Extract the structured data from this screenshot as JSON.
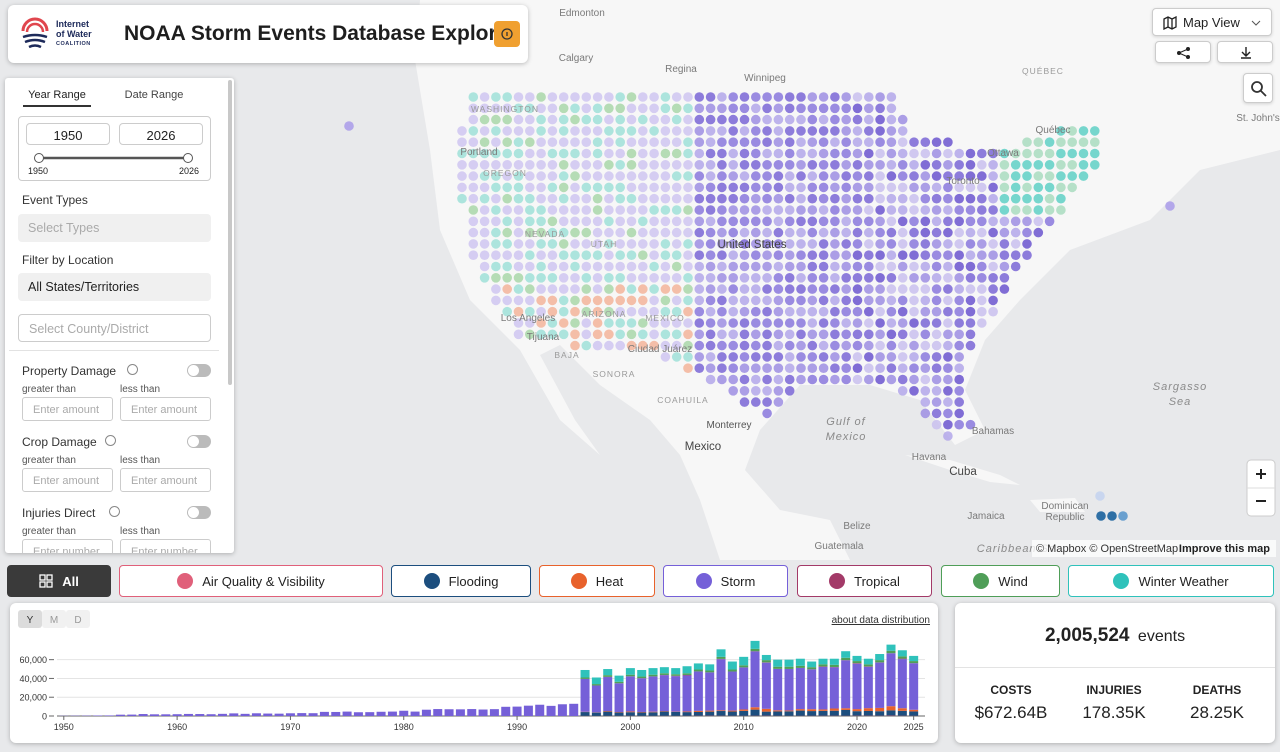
{
  "header": {
    "logo": [
      "Internet",
      "of Water",
      "COALITION"
    ],
    "title": "NOAA Storm Events Database Explorer"
  },
  "map_controls": {
    "view": "Map View"
  },
  "map": {
    "labels": [
      "Edmonton",
      "Calgary",
      "Regina",
      "Winnipeg",
      "QUÉBEC",
      "Québec",
      "Ottawa",
      "Toronto",
      "WASHINGTON",
      "Portland",
      "OREGON",
      "NEVADA",
      "UTAH",
      "United States",
      "Los Angeles",
      "Tijuana",
      "ARIZONA",
      "MEXICO",
      "Ciudad Juárez",
      "SONORA",
      "BAJA",
      "COAHUILA",
      "Monterrey",
      "Gulf of",
      "Mexico",
      "Mexico",
      "Havana",
      "Cuba",
      "Bahamas",
      "Sargasso",
      "Sea",
      "Jamaica",
      "Dominican",
      "Republic",
      "Belize",
      "Guatemala",
      "Caribbean Sea",
      "St. John's"
    ],
    "attribution": "© Mapbox © OpenStreetMap",
    "improve": "Improve this map"
  },
  "sidebar": {
    "tabs": [
      "Year Range",
      "Date Range"
    ],
    "year_from": 1950,
    "year_to": 2026,
    "slider_min": 1950,
    "slider_max": 2026,
    "event_types_label": "Event Types",
    "event_types_placeholder": "Select Types",
    "location_label": "Filter by Location",
    "location_value": "All States/Territories",
    "county_placeholder": "Select County/District",
    "filters": [
      {
        "label": "Property Damage",
        "greater": "greater than",
        "less": "less than",
        "placeholder": "Enter amount"
      },
      {
        "label": "Crop Damage",
        "greater": "greater than",
        "less": "less than",
        "placeholder": "Enter amount"
      },
      {
        "label": "Injuries Direct",
        "greater": "greater than",
        "less": "less than",
        "placeholder": "Enter number"
      }
    ]
  },
  "tabs": {
    "all": "All"
  },
  "chart_controls": {
    "periods": [
      "Y",
      "M",
      "D"
    ],
    "link": "about data distribution"
  },
  "chart_data": {
    "type": "bar",
    "stacked": true,
    "x": [
      1950,
      1951,
      1952,
      1953,
      1954,
      1955,
      1956,
      1957,
      1958,
      1959,
      1960,
      1961,
      1962,
      1963,
      1964,
      1965,
      1966,
      1967,
      1968,
      1969,
      1970,
      1971,
      1972,
      1973,
      1974,
      1975,
      1976,
      1977,
      1978,
      1979,
      1980,
      1981,
      1982,
      1983,
      1984,
      1985,
      1986,
      1987,
      1988,
      1989,
      1990,
      1991,
      1992,
      1993,
      1994,
      1995,
      1996,
      1997,
      1998,
      1999,
      2000,
      2001,
      2002,
      2003,
      2004,
      2005,
      2006,
      2007,
      2008,
      2009,
      2010,
      2011,
      2012,
      2013,
      2014,
      2015,
      2016,
      2017,
      2018,
      2019,
      2020,
      2021,
      2022,
      2023,
      2024,
      2025
    ],
    "xlim": [
      1949.4,
      2026
    ],
    "xticks": [
      1950,
      1960,
      1970,
      1980,
      1990,
      2000,
      2010,
      2020,
      2025
    ],
    "ylim": [
      0,
      82000
    ],
    "yticks": [
      0,
      {
        "value": 20000,
        "label": "20,000"
      },
      {
        "value": 40000,
        "label": "40,000"
      },
      {
        "value": 60000,
        "label": "60,000"
      }
    ],
    "grid": true,
    "series": [
      {
        "name": "Air Quality & Visibility",
        "color": "#e0607a",
        "values": [
          0,
          0,
          0,
          0,
          0,
          0,
          0,
          0,
          0,
          0,
          0,
          0,
          0,
          0,
          0,
          0,
          0,
          0,
          0,
          0,
          0,
          0,
          0,
          0,
          0,
          0,
          0,
          0,
          0,
          0,
          0,
          0,
          0,
          0,
          0,
          0,
          0,
          0,
          0,
          0,
          0,
          0,
          0,
          0,
          0,
          0,
          200,
          150,
          200,
          200,
          250,
          200,
          200,
          250,
          200,
          250,
          300,
          350,
          300,
          250,
          250,
          300,
          350,
          250,
          200,
          250,
          250,
          300,
          300,
          250,
          350,
          350,
          300,
          450,
          300,
          250
        ]
      },
      {
        "name": "Flooding",
        "color": "#1c4e7e",
        "values": [
          0,
          0,
          0,
          0,
          0,
          0,
          0,
          0,
          0,
          0,
          0,
          0,
          0,
          0,
          0,
          0,
          0,
          0,
          0,
          0,
          0,
          0,
          0,
          0,
          0,
          0,
          0,
          0,
          0,
          0,
          0,
          0,
          0,
          0,
          0,
          0,
          0,
          0,
          0,
          0,
          0,
          0,
          0,
          0,
          0,
          0,
          4000,
          3500,
          4500,
          3500,
          3800,
          3600,
          3800,
          4500,
          4200,
          3900,
          4000,
          4300,
          5000,
          4500,
          5200,
          6500,
          4300,
          4600,
          4800,
          5500,
          5000,
          5200,
          5300,
          6200,
          4800,
          5000,
          4800,
          5500,
          5200,
          4600
        ]
      },
      {
        "name": "Heat",
        "color": "#e8622c",
        "values": [
          0,
          0,
          0,
          0,
          0,
          0,
          0,
          0,
          0,
          0,
          0,
          0,
          0,
          0,
          0,
          0,
          0,
          0,
          0,
          0,
          0,
          0,
          0,
          0,
          0,
          0,
          0,
          0,
          0,
          0,
          0,
          0,
          0,
          0,
          0,
          0,
          0,
          0,
          0,
          0,
          0,
          0,
          0,
          0,
          0,
          0,
          300,
          300,
          600,
          500,
          800,
          500,
          600,
          500,
          300,
          700,
          1200,
          1100,
          800,
          1000,
          1500,
          2500,
          3000,
          1200,
          900,
          1600,
          2000,
          1500,
          2400,
          1800,
          2200,
          3000,
          3500,
          4500,
          2800,
          1800
        ]
      },
      {
        "name": "Storm",
        "color": "#7560d8",
        "values": [
          200,
          300,
          350,
          500,
          600,
          1400,
          1500,
          2100,
          1800,
          1800,
          1900,
          2200,
          2100,
          1900,
          2300,
          2800,
          2300,
          2900,
          2600,
          2500,
          2900,
          3100,
          3000,
          4400,
          4300,
          4700,
          4000,
          4100,
          4500,
          4700,
          5600,
          4700,
          6700,
          7400,
          7200,
          7100,
          7400,
          6900,
          7300,
          9800,
          10000,
          11000,
          12000,
          10800,
          12500,
          13000,
          34900,
          28500,
          36200,
          30600,
          37350,
          35850,
          37450,
          38250,
          37700,
          38350,
          41900,
          40650,
          54400,
          41600,
          44700,
          59400,
          49150,
          44100,
          44150,
          43750,
          42350,
          45300,
          43900,
          51050,
          48350,
          44050,
          48300,
          56350,
          52300,
          49550
        ]
      },
      {
        "name": "Tropical",
        "color": "#a33a68",
        "values": [
          0,
          0,
          0,
          0,
          0,
          0,
          0,
          0,
          0,
          0,
          0,
          0,
          0,
          0,
          0,
          0,
          0,
          0,
          0,
          0,
          0,
          0,
          0,
          0,
          0,
          0,
          0,
          0,
          0,
          0,
          0,
          0,
          0,
          0,
          0,
          0,
          0,
          0,
          0,
          0,
          0,
          0,
          0,
          0,
          0,
          0,
          100,
          50,
          200,
          100,
          100,
          150,
          150,
          200,
          400,
          500,
          100,
          100,
          300,
          50,
          150,
          300,
          300,
          50,
          50,
          100,
          200,
          500,
          300,
          200,
          600,
          400,
          200,
          100,
          500,
          100
        ]
      },
      {
        "name": "Wind",
        "color": "#4f9e58",
        "values": [
          0,
          0,
          0,
          0,
          0,
          0,
          0,
          0,
          0,
          0,
          0,
          0,
          0,
          0,
          0,
          0,
          0,
          0,
          0,
          0,
          0,
          0,
          0,
          0,
          0,
          0,
          0,
          0,
          0,
          0,
          0,
          0,
          0,
          0,
          0,
          0,
          0,
          0,
          0,
          0,
          0,
          0,
          0,
          0,
          0,
          0,
          1500,
          1500,
          1800,
          1600,
          1700,
          1700,
          1800,
          1800,
          1700,
          1800,
          2000,
          2000,
          2200,
          2100,
          2200,
          2500,
          2400,
          2300,
          2400,
          2300,
          2200,
          2200,
          2300,
          2500,
          2200,
          2200,
          2400,
          2600,
          2400,
          2200
        ]
      },
      {
        "name": "Winter Weather",
        "color": "#2fc2bb",
        "values": [
          0,
          0,
          0,
          0,
          0,
          0,
          0,
          0,
          0,
          0,
          0,
          0,
          0,
          0,
          0,
          0,
          0,
          0,
          0,
          0,
          0,
          0,
          0,
          0,
          0,
          0,
          0,
          0,
          0,
          0,
          0,
          0,
          0,
          0,
          0,
          0,
          0,
          0,
          0,
          0,
          0,
          0,
          0,
          0,
          0,
          0,
          8000,
          7000,
          6500,
          6500,
          7000,
          7000,
          7000,
          6500,
          6500,
          7500,
          6500,
          6500,
          8000,
          8500,
          9000,
          8500,
          5500,
          7500,
          7500,
          7500,
          6000,
          6000,
          6500,
          7000,
          5500,
          6000,
          6500,
          6500,
          6500,
          5500
        ]
      }
    ]
  },
  "summary": {
    "count": "2,005,524",
    "unit": "events",
    "stats": [
      {
        "label": "COSTS",
        "value": "$672.64B"
      },
      {
        "label": "INJURIES",
        "value": "178.35K"
      },
      {
        "label": "DEATHS",
        "value": "28.25K"
      }
    ]
  }
}
